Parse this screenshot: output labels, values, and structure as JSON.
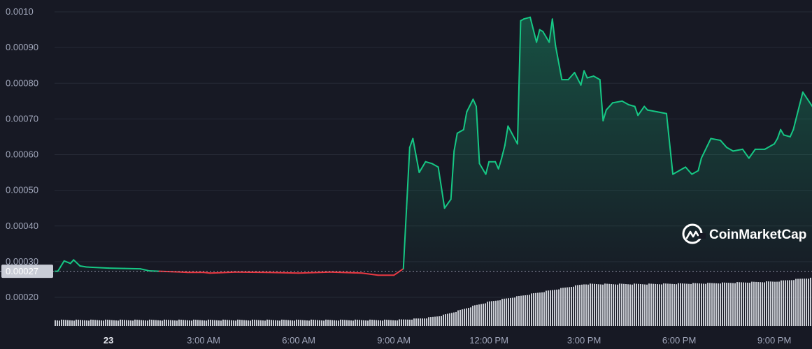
{
  "chart_data": {
    "type": "area",
    "title": "",
    "xlabel": "",
    "ylabel": "",
    "ylim": [
      0.000155,
      0.001015
    ],
    "grid": true,
    "legend": "none",
    "y_ticks": [
      "0.0010",
      "0.00090",
      "0.00080",
      "0.00070",
      "0.00060",
      "0.00050",
      "0.00040",
      "0.00030",
      "0.00020"
    ],
    "y_tick_values": [
      0.001,
      0.0009,
      0.0008,
      0.0007,
      0.0006,
      0.0005,
      0.0004,
      0.0003,
      0.0002
    ],
    "x_ticks": [
      {
        "label": "23",
        "hour": 2,
        "bold": true
      },
      {
        "label": "3:00 AM",
        "hour": 5
      },
      {
        "label": "6:00 AM",
        "hour": 8
      },
      {
        "label": "9:00 AM",
        "hour": 11
      },
      {
        "label": "12:00 PM",
        "hour": 14
      },
      {
        "label": "3:00 PM",
        "hour": 17
      },
      {
        "label": "6:00 PM",
        "hour": 20
      },
      {
        "label": "9:00 PM",
        "hour": 23
      }
    ],
    "x_range": [
      0.2,
      25.3
    ],
    "reference_price": 0.000273,
    "current_price_label": "0.00027",
    "series": [
      {
        "x": [
          0.2,
          0.4,
          0.6,
          0.8,
          0.9,
          1.1,
          1.3,
          1.5,
          2,
          2.5,
          3,
          3.3,
          3.6,
          4,
          4.5,
          5,
          5.2,
          5.5,
          6,
          7,
          8,
          9,
          10,
          10.5,
          11,
          11.3,
          11.4,
          11.5,
          11.6,
          11.8,
          12,
          12.2,
          12.4,
          12.6,
          12.8,
          12.9,
          13,
          13.2,
          13.3,
          13.5,
          13.6,
          13.7,
          13.9,
          14,
          14.2,
          14.3,
          14.4,
          14.5,
          14.6,
          14.9,
          15,
          15.1,
          15.3,
          15.5,
          15.6,
          15.7,
          15.9,
          16,
          16.1,
          16.3,
          16.5,
          16.7,
          16.9,
          17,
          17.1,
          17.3,
          17.5,
          17.6,
          17.7,
          17.9,
          18.2,
          18.4,
          18.6,
          18.7,
          18.9,
          19,
          19.3,
          19.6,
          19.8,
          20,
          20.2,
          20.4,
          20.6,
          20.7,
          21,
          21.3,
          21.5,
          21.7,
          22,
          22.2,
          22.4,
          22.7,
          23,
          23.1,
          23.2,
          23.3,
          23.5,
          23.6,
          23.9,
          24.2,
          24.5,
          24.8,
          25,
          25.3
        ],
        "y": [
          0.000273,
          0.000273,
          0.000302,
          0.000295,
          0.000305,
          0.000288,
          0.000285,
          0.000284,
          0.000282,
          0.000281,
          0.00028,
          0.000274,
          0.000273,
          0.000272,
          0.00027,
          0.00027,
          0.000268,
          0.000269,
          0.000271,
          0.00027,
          0.000268,
          0.000271,
          0.000268,
          0.000262,
          0.000262,
          0.00028,
          0.00045,
          0.00062,
          0.000645,
          0.00055,
          0.00058,
          0.000575,
          0.000565,
          0.00045,
          0.000475,
          0.00061,
          0.00066,
          0.00067,
          0.00072,
          0.000755,
          0.000735,
          0.000575,
          0.000545,
          0.00058,
          0.00058,
          0.00056,
          0.00059,
          0.000625,
          0.00068,
          0.00063,
          0.000975,
          0.00098,
          0.000985,
          0.000915,
          0.00095,
          0.000945,
          0.000915,
          0.00098,
          0.000905,
          0.00081,
          0.00081,
          0.00083,
          0.000795,
          0.000835,
          0.000815,
          0.00082,
          0.00081,
          0.000695,
          0.000725,
          0.000745,
          0.00075,
          0.00074,
          0.000735,
          0.00071,
          0.000735,
          0.000725,
          0.00072,
          0.000715,
          0.000545,
          0.000555,
          0.000565,
          0.000545,
          0.000555,
          0.00059,
          0.000645,
          0.00064,
          0.00062,
          0.00061,
          0.000615,
          0.00059,
          0.000615,
          0.000615,
          0.00063,
          0.000645,
          0.00067,
          0.000655,
          0.00065,
          0.00067,
          0.000775,
          0.000735,
          0.000695,
          0.00068,
          0.000675,
          0.000665
        ]
      }
    ],
    "volume": {
      "x": [
        0,
        11,
        11.5,
        12,
        12.5,
        13,
        13.5,
        14,
        15,
        16,
        17,
        19,
        21,
        23,
        24,
        25.5
      ],
      "v": [
        0.14,
        0.14,
        0.16,
        0.19,
        0.25,
        0.36,
        0.48,
        0.58,
        0.72,
        0.86,
        1.0,
        1.0,
        1.02,
        1.06,
        1.14,
        1.14
      ]
    }
  },
  "colors": {
    "background": "#171924",
    "grid": "#262a36",
    "up_line": "#16c784",
    "down_line": "#ea3943",
    "reference_line": "#8a8fa3",
    "volume_bar": "#d9dbe3",
    "label_bg": "#c9ccd6",
    "tick_text": "#a1a7bb"
  },
  "watermark": {
    "icon": "coinmarketcap-logo",
    "text": "CoinMarketCap"
  }
}
